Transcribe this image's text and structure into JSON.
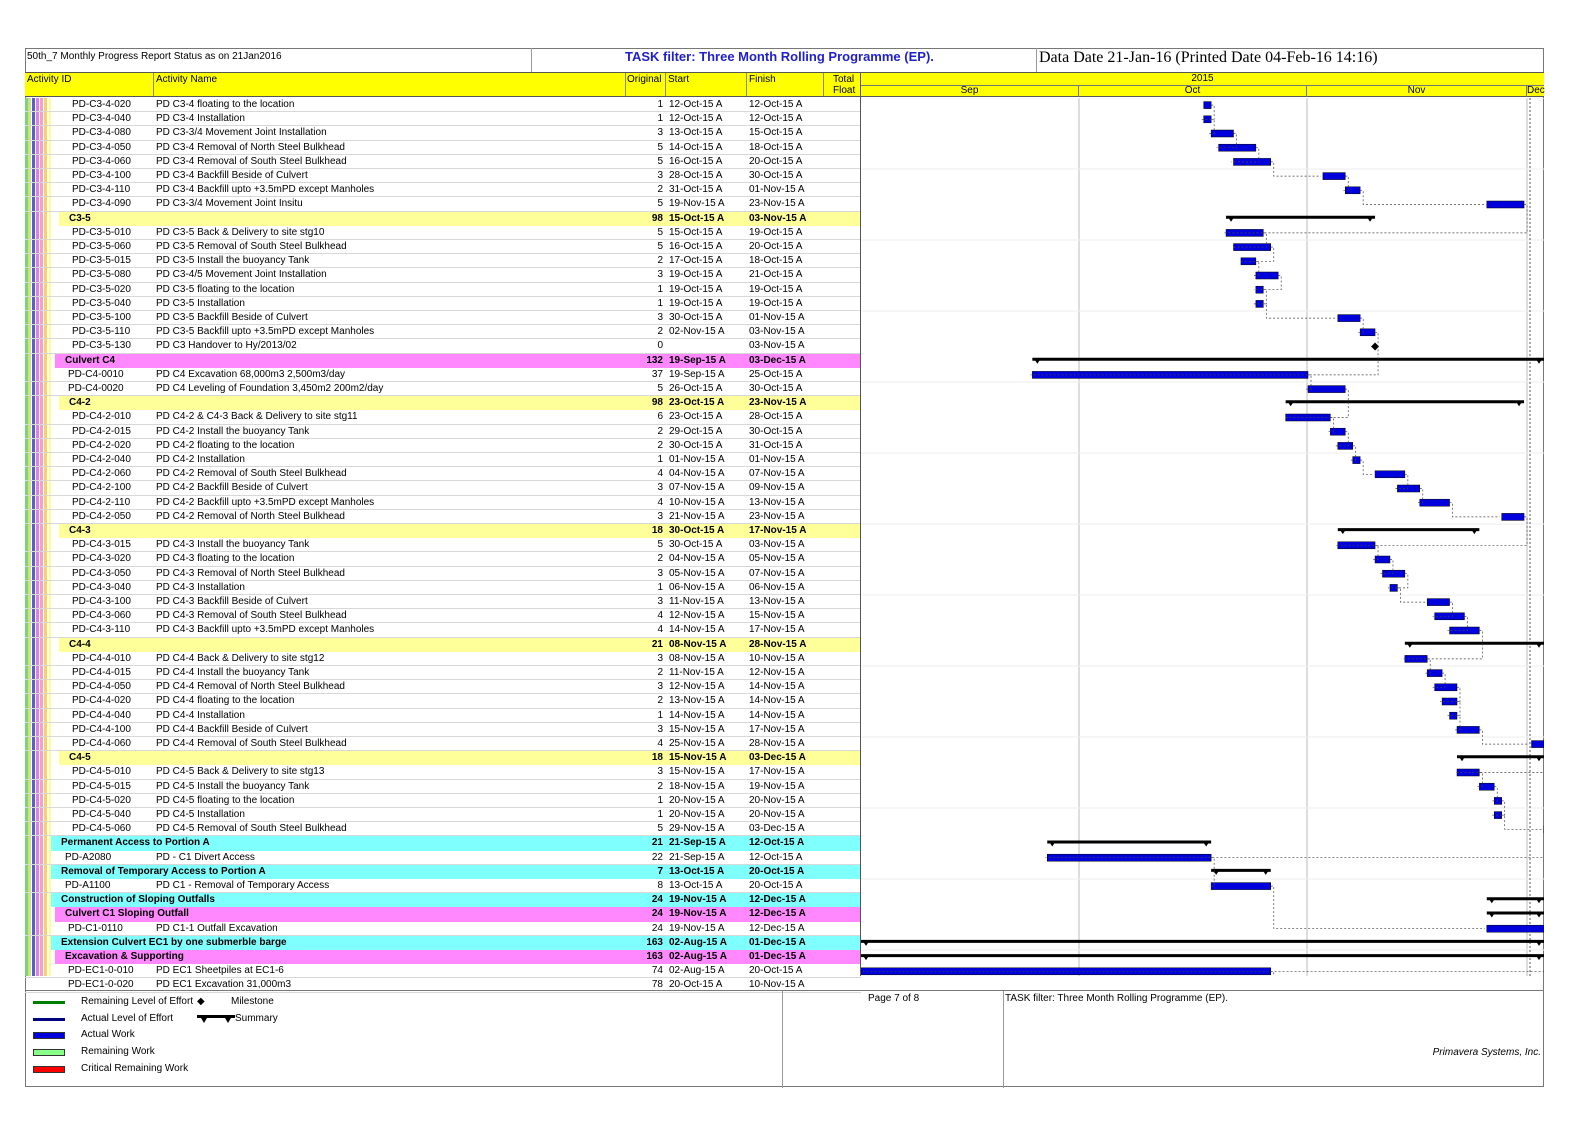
{
  "header": {
    "report_title": "50th_7 Monthly Progress Report Status as on 21Jan2016",
    "filter_title": "TASK filter: Three Month Rolling Programme (EP).",
    "data_date": "Data Date 21-Jan-16 (Printed Date 04-Feb-16 14:16)"
  },
  "columns": {
    "activity_id": "Activity ID",
    "activity_name": "Activity Name",
    "original": "Original",
    "start": "Start",
    "finish": "Finish",
    "total": "Total",
    "float": "Float"
  },
  "timescale": {
    "year": "2015",
    "months": [
      "Sep",
      "Oct",
      "Nov",
      "Dec"
    ]
  },
  "colors": {
    "header_yellow": "#ffff00",
    "wbs_yellow": "#ffff99",
    "wbs_magenta": "#ff88ff",
    "wbs_cyan": "#80ffff",
    "actual_work": "#0000dd"
  },
  "rows": [
    {
      "t": "a",
      "id": "PD-C3-4-020",
      "name": "PD C3-4 floating to the location",
      "od": "1",
      "start": "12-Oct-15 A",
      "finish": "12-Oct-15 A"
    },
    {
      "t": "a",
      "id": "PD-C3-4-040",
      "name": "PD C3-4 Installation",
      "od": "1",
      "start": "12-Oct-15 A",
      "finish": "12-Oct-15 A"
    },
    {
      "t": "a",
      "id": "PD-C3-4-080",
      "name": "PD C3-3/4 Movement Joint Installation",
      "od": "3",
      "start": "13-Oct-15 A",
      "finish": "15-Oct-15 A"
    },
    {
      "t": "a",
      "id": "PD-C3-4-050",
      "name": "PD C3-4 Removal of North Steel Bulkhead",
      "od": "5",
      "start": "14-Oct-15 A",
      "finish": "18-Oct-15 A"
    },
    {
      "t": "a",
      "id": "PD-C3-4-060",
      "name": "PD C3-4 Removal of South Steel Bulkhead",
      "od": "5",
      "start": "16-Oct-15 A",
      "finish": "20-Oct-15 A"
    },
    {
      "t": "a",
      "id": "PD-C3-4-100",
      "name": "PD C3-4 Backfill Beside of Culvert",
      "od": "3",
      "start": "28-Oct-15 A",
      "finish": "30-Oct-15 A"
    },
    {
      "t": "a",
      "id": "PD-C3-4-110",
      "name": "PD C3-4 Backfill upto +3.5mPD except Manholes",
      "od": "2",
      "start": "31-Oct-15 A",
      "finish": "01-Nov-15 A"
    },
    {
      "t": "a",
      "id": "PD-C3-4-090",
      "name": "PD C3-3/4 Movement Joint Insitu",
      "od": "5",
      "start": "19-Nov-15 A",
      "finish": "23-Nov-15 A"
    },
    {
      "t": "g",
      "c": "y",
      "ind": 44,
      "id": "C3-5",
      "name": "",
      "od": "98",
      "start": "15-Oct-15 A",
      "finish": "03-Nov-15 A"
    },
    {
      "t": "a",
      "id": "PD-C3-5-010",
      "name": "PD C3-5 Back & Delivery to site stg10",
      "od": "5",
      "start": "15-Oct-15 A",
      "finish": "19-Oct-15 A"
    },
    {
      "t": "a",
      "id": "PD-C3-5-060",
      "name": "PD C3-5 Removal of South Steel Bulkhead",
      "od": "5",
      "start": "16-Oct-15 A",
      "finish": "20-Oct-15 A"
    },
    {
      "t": "a",
      "id": "PD-C3-5-015",
      "name": "PD C3-5 Install the buoyancy Tank",
      "od": "2",
      "start": "17-Oct-15 A",
      "finish": "18-Oct-15 A"
    },
    {
      "t": "a",
      "id": "PD-C3-5-080",
      "name": "PD C3-4/5 Movement Joint Installation",
      "od": "3",
      "start": "19-Oct-15 A",
      "finish": "21-Oct-15 A"
    },
    {
      "t": "a",
      "id": "PD-C3-5-020",
      "name": "PD C3-5 floating to the location",
      "od": "1",
      "start": "19-Oct-15 A",
      "finish": "19-Oct-15 A"
    },
    {
      "t": "a",
      "id": "PD-C3-5-040",
      "name": "PD C3-5 Installation",
      "od": "1",
      "start": "19-Oct-15 A",
      "finish": "19-Oct-15 A"
    },
    {
      "t": "a",
      "id": "PD-C3-5-100",
      "name": "PD C3-5 Backfill Beside of Culvert",
      "od": "3",
      "start": "30-Oct-15 A",
      "finish": "01-Nov-15 A"
    },
    {
      "t": "a",
      "id": "PD-C3-5-110",
      "name": "PD C3-5 Backfill upto +3.5mPD except Manholes",
      "od": "2",
      "start": "02-Nov-15 A",
      "finish": "03-Nov-15 A"
    },
    {
      "t": "a",
      "id": "PD-C3-5-130",
      "name": "PD C3 Handover to Hy/2013/02",
      "od": "0",
      "start": "",
      "finish": "03-Nov-15 A"
    },
    {
      "t": "g",
      "c": "m",
      "ind": 40,
      "id": "Culvert C4",
      "name": "",
      "od": "132",
      "start": "19-Sep-15 A",
      "finish": "03-Dec-15 A"
    },
    {
      "t": "a",
      "ind": 43,
      "id": "PD-C4-0010",
      "name": "PD C4 Excavation 68,000m3 2,500m3/day",
      "od": "37",
      "start": "19-Sep-15 A",
      "finish": "25-Oct-15 A"
    },
    {
      "t": "a",
      "ind": 43,
      "id": "PD-C4-0020",
      "name": "PD C4 Leveling of Foundation 3,450m2 200m2/day",
      "od": "5",
      "start": "26-Oct-15 A",
      "finish": "30-Oct-15 A"
    },
    {
      "t": "g",
      "c": "y",
      "ind": 44,
      "id": "C4-2",
      "name": "",
      "od": "98",
      "start": "23-Oct-15 A",
      "finish": "23-Nov-15 A"
    },
    {
      "t": "a",
      "id": "PD-C4-2-010",
      "name": "PD C4-2 & C4-3 Back & Delivery to site stg11",
      "od": "6",
      "start": "23-Oct-15 A",
      "finish": "28-Oct-15 A"
    },
    {
      "t": "a",
      "id": "PD-C4-2-015",
      "name": "PD C4-2 Install the buoyancy Tank",
      "od": "2",
      "start": "29-Oct-15 A",
      "finish": "30-Oct-15 A"
    },
    {
      "t": "a",
      "id": "PD-C4-2-020",
      "name": "PD C4-2 floating to the location",
      "od": "2",
      "start": "30-Oct-15 A",
      "finish": "31-Oct-15 A"
    },
    {
      "t": "a",
      "id": "PD-C4-2-040",
      "name": "PD C4-2 Installation",
      "od": "1",
      "start": "01-Nov-15 A",
      "finish": "01-Nov-15 A"
    },
    {
      "t": "a",
      "id": "PD-C4-2-060",
      "name": "PD C4-2 Removal of South Steel Bulkhead",
      "od": "4",
      "start": "04-Nov-15 A",
      "finish": "07-Nov-15 A"
    },
    {
      "t": "a",
      "id": "PD-C4-2-100",
      "name": "PD C4-2 Backfill Beside of Culvert",
      "od": "3",
      "start": "07-Nov-15 A",
      "finish": "09-Nov-15 A"
    },
    {
      "t": "a",
      "id": "PD-C4-2-110",
      "name": "PD C4-2 Backfill upto +3.5mPD except Manholes",
      "od": "4",
      "start": "10-Nov-15 A",
      "finish": "13-Nov-15 A"
    },
    {
      "t": "a",
      "id": "PD-C4-2-050",
      "name": "PD C4-2 Removal of North Steel Bulkhead",
      "od": "3",
      "start": "21-Nov-15 A",
      "finish": "23-Nov-15 A"
    },
    {
      "t": "g",
      "c": "y",
      "ind": 44,
      "id": "C4-3",
      "name": "",
      "od": "18",
      "start": "30-Oct-15 A",
      "finish": "17-Nov-15 A"
    },
    {
      "t": "a",
      "id": "PD-C4-3-015",
      "name": "PD C4-3 Install the buoyancy Tank",
      "od": "5",
      "start": "30-Oct-15 A",
      "finish": "03-Nov-15 A"
    },
    {
      "t": "a",
      "id": "PD-C4-3-020",
      "name": "PD C4-3 floating to the location",
      "od": "2",
      "start": "04-Nov-15 A",
      "finish": "05-Nov-15 A"
    },
    {
      "t": "a",
      "id": "PD-C4-3-050",
      "name": "PD C4-3 Removal of North Steel Bulkhead",
      "od": "3",
      "start": "05-Nov-15 A",
      "finish": "07-Nov-15 A"
    },
    {
      "t": "a",
      "id": "PD-C4-3-040",
      "name": "PD C4-3 Installation",
      "od": "1",
      "start": "06-Nov-15 A",
      "finish": "06-Nov-15 A"
    },
    {
      "t": "a",
      "id": "PD-C4-3-100",
      "name": "PD C4-3 Backfill Beside of Culvert",
      "od": "3",
      "start": "11-Nov-15 A",
      "finish": "13-Nov-15 A"
    },
    {
      "t": "a",
      "id": "PD-C4-3-060",
      "name": "PD C4-3 Removal of South Steel Bulkhead",
      "od": "4",
      "start": "12-Nov-15 A",
      "finish": "15-Nov-15 A"
    },
    {
      "t": "a",
      "id": "PD-C4-3-110",
      "name": "PD C4-3 Backfill upto +3.5mPD except Manholes",
      "od": "4",
      "start": "14-Nov-15 A",
      "finish": "17-Nov-15 A"
    },
    {
      "t": "g",
      "c": "y",
      "ind": 44,
      "id": "C4-4",
      "name": "",
      "od": "21",
      "start": "08-Nov-15 A",
      "finish": "28-Nov-15 A"
    },
    {
      "t": "a",
      "id": "PD-C4-4-010",
      "name": "PD C4-4 Back & Delivery to site stg12",
      "od": "3",
      "start": "08-Nov-15 A",
      "finish": "10-Nov-15 A"
    },
    {
      "t": "a",
      "id": "PD-C4-4-015",
      "name": "PD C4-4 Install the buoyancy Tank",
      "od": "2",
      "start": "11-Nov-15 A",
      "finish": "12-Nov-15 A"
    },
    {
      "t": "a",
      "id": "PD-C4-4-050",
      "name": "PD C4-4 Removal of North Steel Bulkhead",
      "od": "3",
      "start": "12-Nov-15 A",
      "finish": "14-Nov-15 A"
    },
    {
      "t": "a",
      "id": "PD-C4-4-020",
      "name": "PD C4-4 floating to the location",
      "od": "2",
      "start": "13-Nov-15 A",
      "finish": "14-Nov-15 A"
    },
    {
      "t": "a",
      "id": "PD-C4-4-040",
      "name": "PD C4-4 Installation",
      "od": "1",
      "start": "14-Nov-15 A",
      "finish": "14-Nov-15 A"
    },
    {
      "t": "a",
      "id": "PD-C4-4-100",
      "name": "PD C4-4 Backfill Beside of Culvert",
      "od": "3",
      "start": "15-Nov-15 A",
      "finish": "17-Nov-15 A"
    },
    {
      "t": "a",
      "id": "PD-C4-4-060",
      "name": "PD C4-4 Removal of South Steel Bulkhead",
      "od": "4",
      "start": "25-Nov-15 A",
      "finish": "28-Nov-15 A"
    },
    {
      "t": "g",
      "c": "y",
      "ind": 44,
      "id": "C4-5",
      "name": "",
      "od": "18",
      "start": "15-Nov-15 A",
      "finish": "03-Dec-15 A"
    },
    {
      "t": "a",
      "id": "PD-C4-5-010",
      "name": "PD C4-5 Back & Delivery to site stg13",
      "od": "3",
      "start": "15-Nov-15 A",
      "finish": "17-Nov-15 A"
    },
    {
      "t": "a",
      "id": "PD-C4-5-015",
      "name": "PD C4-5 Install the buoyancy Tank",
      "od": "2",
      "start": "18-Nov-15 A",
      "finish": "19-Nov-15 A"
    },
    {
      "t": "a",
      "id": "PD-C4-5-020",
      "name": "PD C4-5 floating to the location",
      "od": "1",
      "start": "20-Nov-15 A",
      "finish": "20-Nov-15 A"
    },
    {
      "t": "a",
      "id": "PD-C4-5-040",
      "name": "PD C4-5 Installation",
      "od": "1",
      "start": "20-Nov-15 A",
      "finish": "20-Nov-15 A"
    },
    {
      "t": "a",
      "id": "PD-C4-5-060",
      "name": "PD C4-5 Removal of South Steel Bulkhead",
      "od": "5",
      "start": "29-Nov-15 A",
      "finish": "03-Dec-15 A"
    },
    {
      "t": "g",
      "c": "c",
      "ind": 36,
      "id": "Permanent Access to Portion A",
      "name": "",
      "od": "21",
      "start": "21-Sep-15 A",
      "finish": "12-Oct-15 A"
    },
    {
      "t": "a",
      "ind": 40,
      "id": "PD-A2080",
      "name": "PD - C1 Divert Access",
      "od": "22",
      "start": "21-Sep-15 A",
      "finish": "12-Oct-15 A"
    },
    {
      "t": "g",
      "c": "c",
      "ind": 36,
      "id": "Removal of Temporary Access to Portion A",
      "name": "",
      "od": "7",
      "start": "13-Oct-15 A",
      "finish": "20-Oct-15 A"
    },
    {
      "t": "a",
      "ind": 40,
      "id": "PD-A1100",
      "name": "PD C1 - Removal of Temporary Access",
      "od": "8",
      "start": "13-Oct-15 A",
      "finish": "20-Oct-15 A"
    },
    {
      "t": "g",
      "c": "c",
      "ind": 36,
      "id": "Construction of Sloping Outfalls",
      "name": "",
      "od": "24",
      "start": "19-Nov-15 A",
      "finish": "12-Dec-15 A"
    },
    {
      "t": "g",
      "c": "m",
      "ind": 40,
      "id": "Culvert C1 Sloping Outfall",
      "name": "",
      "od": "24",
      "start": "19-Nov-15 A",
      "finish": "12-Dec-15 A"
    },
    {
      "t": "a",
      "ind": 43,
      "id": "PD-C1-0110",
      "name": "PD C1-1 Outfall Excavation",
      "od": "24",
      "start": "19-Nov-15 A",
      "finish": "12-Dec-15 A"
    },
    {
      "t": "g",
      "c": "c",
      "ind": 36,
      "id": "Extension Culvert EC1 by one submerble barge",
      "name": "",
      "od": "163",
      "start": "02-Aug-15 A",
      "finish": "01-Dec-15 A"
    },
    {
      "t": "g",
      "c": "m",
      "ind": 40,
      "id": "Excavation & Supporting",
      "name": "",
      "od": "163",
      "start": "02-Aug-15 A",
      "finish": "01-Dec-15 A"
    },
    {
      "t": "a",
      "ind": 43,
      "id": "PD-EC1-0-010",
      "name": "PD EC1 Sheetpiles at EC1-6",
      "od": "74",
      "start": "02-Aug-15 A",
      "finish": "20-Oct-15 A"
    },
    {
      "t": "a",
      "ind": 43,
      "id": "PD-EC1-0-020",
      "name": "PD EC1 Excavation 31,000m3",
      "od": "78",
      "start": "20-Oct-15 A",
      "finish": "10-Nov-15 A"
    }
  ],
  "legend": [
    {
      "label": "Remaining Level of Effort",
      "color": "#008000"
    },
    {
      "label": "Actual Level of Effort",
      "color": "#000080"
    },
    {
      "label": "Actual Work",
      "color": "#0000dd"
    },
    {
      "label": "Remaining Work",
      "color": "#88ff88"
    },
    {
      "label": "Critical Remaining Work",
      "color": "#ff0000"
    }
  ],
  "legend2": {
    "milestone": "Milestone",
    "summary": "Summary"
  },
  "footer": {
    "page": "Page 7 of 8",
    "filter": "TASK filter: Three Month Rolling Programme (EP).",
    "company": "Primavera Systems, Inc."
  }
}
